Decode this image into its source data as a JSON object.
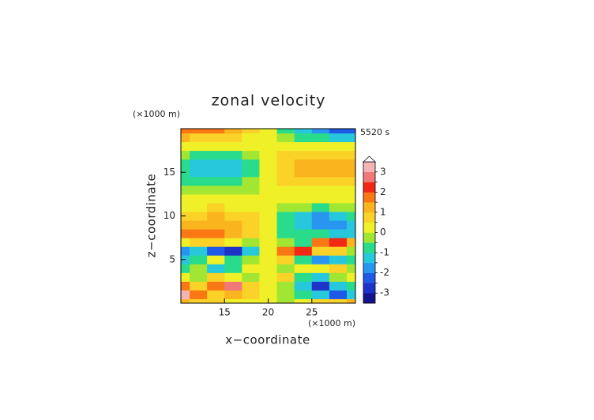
{
  "chart_data": {
    "type": "contour",
    "title": "zonal velocity",
    "xlabel": "x−coordinate",
    "ylabel": "z−coordinate",
    "x_unit_label": "(×1000 m)",
    "y_unit_label": "(×1000 m)",
    "time_label": "5520 s",
    "x": [
      10,
      12,
      14,
      16,
      18,
      20,
      22,
      24,
      26,
      28,
      30
    ],
    "y": [
      0,
      1,
      2,
      3,
      4,
      5,
      6,
      7,
      8,
      9,
      10,
      11,
      12,
      13,
      14,
      15,
      16,
      17,
      18,
      19,
      20
    ],
    "z": [
      [
        1.0,
        0.8,
        0.5,
        0.3,
        0.2,
        0.0,
        -0.2,
        0.3,
        0.6,
        0.8,
        1.0
      ],
      [
        3.2,
        1.5,
        0.8,
        1.2,
        0.5,
        0.0,
        -0.3,
        -1.0,
        -1.5,
        -2.5,
        -1.5
      ],
      [
        1.5,
        0.8,
        1.5,
        2.5,
        0.8,
        0.0,
        -0.5,
        -1.5,
        -2.8,
        -1.5,
        -0.8
      ],
      [
        0.3,
        -0.3,
        0.5,
        0.2,
        -0.5,
        0.0,
        0.5,
        -0.8,
        -1.2,
        -0.3,
        0.2
      ],
      [
        -0.8,
        -0.4,
        -1.2,
        -0.6,
        0.3,
        0.0,
        -0.3,
        0.4,
        0.2,
        0.6,
        -0.3
      ],
      [
        -1.3,
        -0.8,
        0.2,
        -1.0,
        -0.5,
        0.0,
        0.6,
        -1.0,
        -1.8,
        -1.2,
        -0.8
      ],
      [
        -2.0,
        -1.5,
        -2.5,
        -2.8,
        -1.2,
        0.0,
        1.5,
        2.0,
        0.8,
        0.5,
        -0.5
      ],
      [
        0.2,
        0.5,
        0.8,
        0.3,
        -0.3,
        0.0,
        -0.5,
        -0.8,
        1.8,
        2.2,
        1.0
      ],
      [
        1.5,
        1.8,
        1.5,
        1.2,
        0.8,
        0.2,
        -0.6,
        -0.8,
        -1.0,
        -1.2,
        -1.2
      ],
      [
        1.2,
        1.2,
        1.2,
        1.0,
        0.8,
        0.2,
        -0.8,
        -1.5,
        -1.8,
        -1.8,
        -1.5
      ],
      [
        0.8,
        0.8,
        1.0,
        0.8,
        0.6,
        0.1,
        -0.6,
        -1.5,
        -1.8,
        -1.5,
        -1.0
      ],
      [
        0.3,
        0.4,
        0.5,
        0.4,
        0.3,
        0.1,
        -0.2,
        -0.5,
        -0.6,
        -0.5,
        -0.3
      ],
      [
        0.2,
        0.2,
        0.2,
        0.2,
        0.2,
        0.2,
        0.3,
        0.3,
        0.3,
        0.2,
        0.2
      ],
      [
        -0.3,
        -0.3,
        -0.3,
        -0.3,
        -0.2,
        0.2,
        0.3,
        0.4,
        0.4,
        0.3,
        0.3
      ],
      [
        -0.8,
        -0.9,
        -0.9,
        -0.8,
        -0.5,
        0.1,
        0.6,
        0.8,
        0.8,
        0.8,
        0.7
      ],
      [
        -1.0,
        -1.2,
        -1.3,
        -1.2,
        -0.8,
        0.1,
        0.8,
        1.2,
        1.3,
        1.2,
        1.0
      ],
      [
        -0.8,
        -1.3,
        -1.3,
        -1.2,
        -0.8,
        0.1,
        0.8,
        1.2,
        1.3,
        1.3,
        1.0
      ],
      [
        -0.4,
        -0.8,
        -0.8,
        -0.7,
        -0.4,
        0.1,
        0.6,
        0.9,
        0.9,
        0.8,
        0.6
      ],
      [
        0.2,
        0.2,
        0.3,
        0.2,
        0.2,
        0.2,
        0.2,
        0.2,
        0.2,
        0.1,
        0.0
      ],
      [
        1.0,
        0.8,
        0.8,
        0.6,
        0.4,
        0.1,
        -0.4,
        -0.8,
        -1.0,
        -1.2,
        -1.5
      ],
      [
        1.8,
        1.5,
        1.5,
        1.3,
        0.8,
        0.1,
        -1.0,
        -1.5,
        -2.0,
        -2.2,
        -2.3
      ]
    ],
    "xlim": [
      10,
      30
    ],
    "ylim": [
      0,
      20
    ],
    "xticks": [
      15,
      20,
      25
    ],
    "yticks": [
      5,
      10,
      15
    ],
    "levels": [
      -3,
      -2.5,
      -2,
      -1.5,
      -1,
      -0.5,
      0,
      0.5,
      1,
      1.5,
      2,
      2.5,
      3
    ],
    "colors": [
      "#14148c",
      "#1e32c8",
      "#1e5ae6",
      "#2896f0",
      "#28c8dc",
      "#28dc8c",
      "#a0e632",
      "#f0f028",
      "#fad228",
      "#fab41e",
      "#fa7814",
      "#f02814",
      "#f07878",
      "#f5b4b4"
    ],
    "colorbar_ticks": [
      -3,
      -2,
      -1,
      0,
      1,
      2,
      3
    ]
  }
}
